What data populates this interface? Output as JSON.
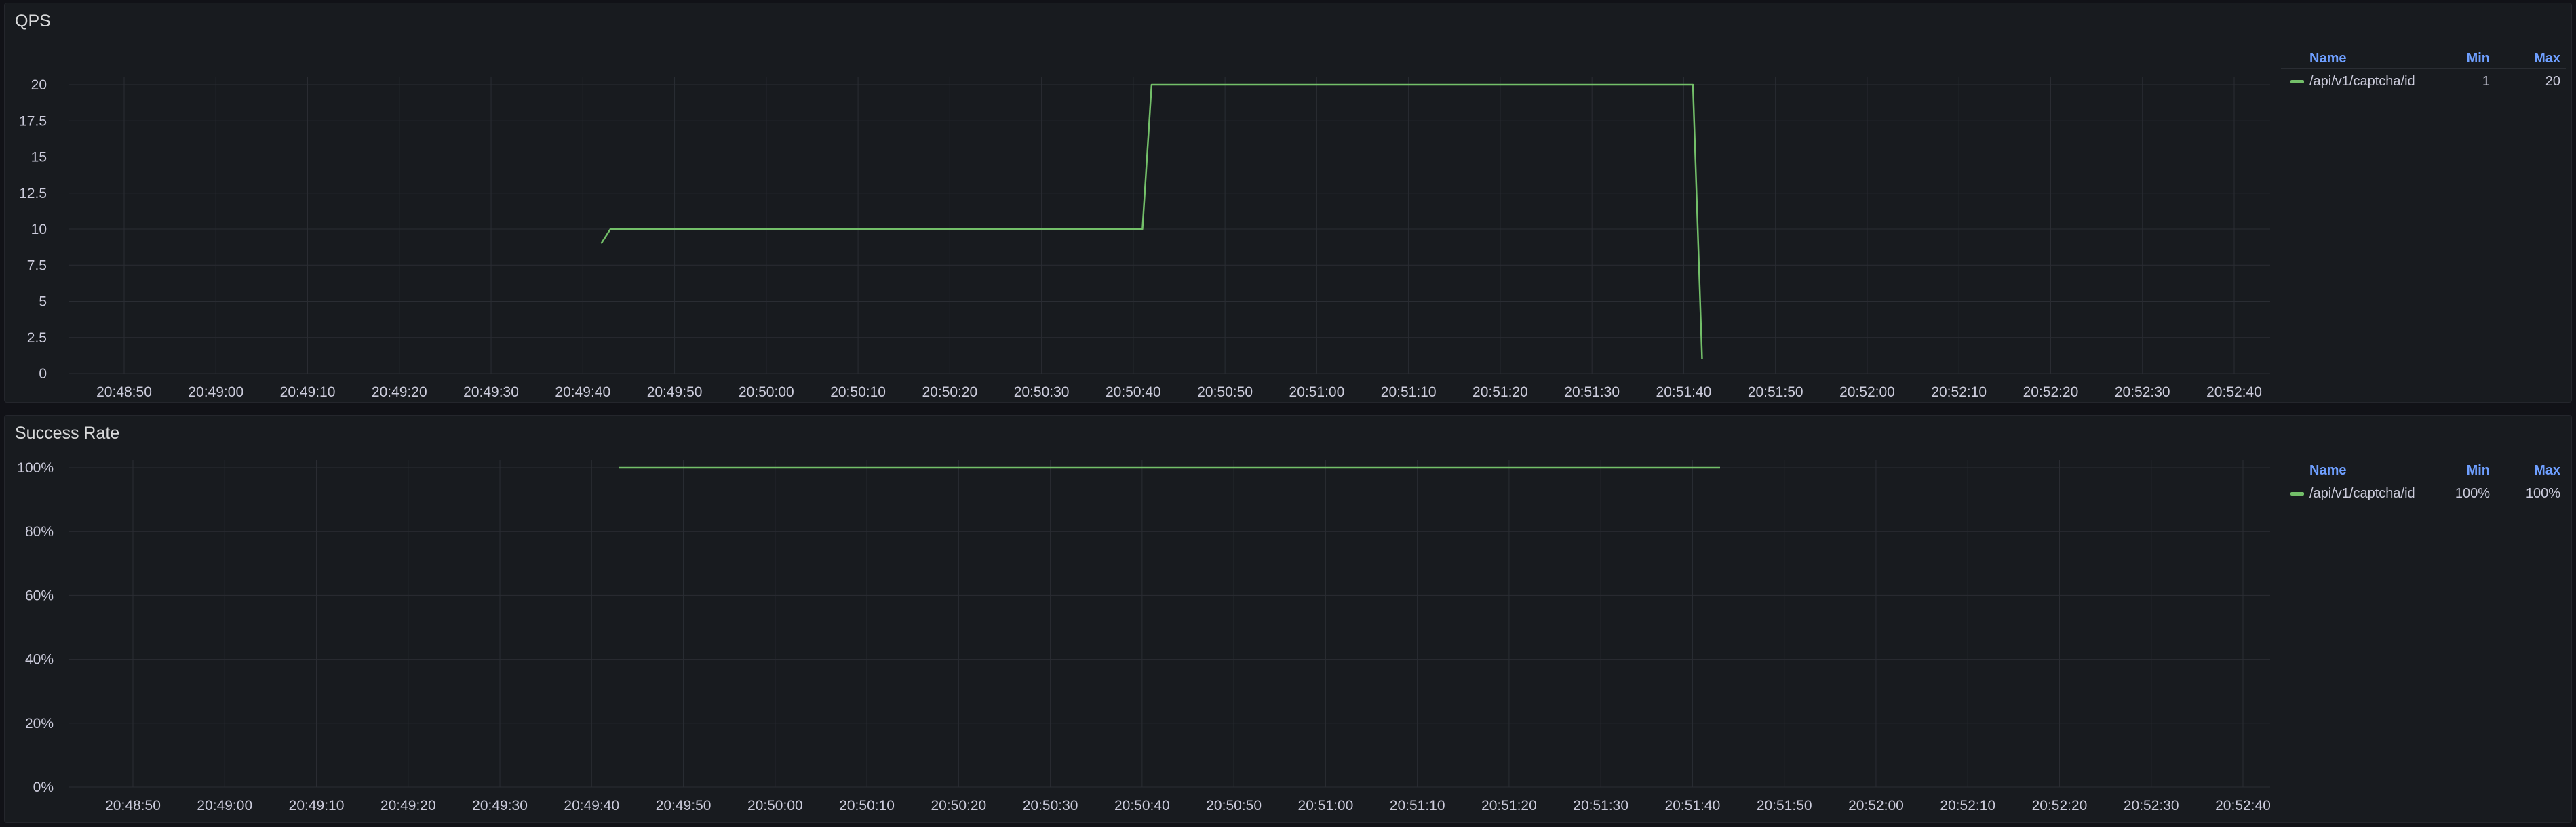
{
  "colors": {
    "series": "#73bf69",
    "grid": "#2a2d33"
  },
  "panels": [
    {
      "title": "QPS",
      "legend": {
        "headers": {
          "name": "Name",
          "min": "Min",
          "max": "Max"
        },
        "rows": [
          {
            "name": "/api/v1/captcha/id",
            "min": "1",
            "max": "20"
          }
        ]
      },
      "chart_data": {
        "type": "line",
        "x_ticks": [
          "20:48:50",
          "20:49:00",
          "20:49:10",
          "20:49:20",
          "20:49:30",
          "20:49:40",
          "20:49:50",
          "20:50:00",
          "20:50:10",
          "20:50:20",
          "20:50:30",
          "20:50:40",
          "20:50:50",
          "20:51:00",
          "20:51:10",
          "20:51:20",
          "20:51:30",
          "20:51:40",
          "20:51:50",
          "20:52:00",
          "20:52:10",
          "20:52:20",
          "20:52:30",
          "20:52:40"
        ],
        "y_ticks": [
          "0",
          "2.5",
          "5",
          "7.5",
          "10",
          "12.5",
          "15",
          "17.5",
          "20"
        ],
        "ylim": [
          0,
          20
        ],
        "grid": true,
        "series": [
          {
            "name": "/api/v1/captcha/id",
            "points": [
              {
                "t": "20:49:42",
                "v": 9
              },
              {
                "t": "20:49:43",
                "v": 10
              },
              {
                "t": "20:50:41",
                "v": 10
              },
              {
                "t": "20:50:42",
                "v": 20
              },
              {
                "t": "20:51:41",
                "v": 20
              },
              {
                "t": "20:51:42",
                "v": 1
              }
            ]
          }
        ]
      }
    },
    {
      "title": "Success Rate",
      "legend": {
        "headers": {
          "name": "Name",
          "min": "Min",
          "max": "Max"
        },
        "rows": [
          {
            "name": "/api/v1/captcha/id",
            "min": "100%",
            "max": "100%"
          }
        ]
      },
      "chart_data": {
        "type": "line",
        "x_ticks": [
          "20:48:50",
          "20:49:00",
          "20:49:10",
          "20:49:20",
          "20:49:30",
          "20:49:40",
          "20:49:50",
          "20:50:00",
          "20:50:10",
          "20:50:20",
          "20:50:30",
          "20:50:40",
          "20:50:50",
          "20:51:00",
          "20:51:10",
          "20:51:20",
          "20:51:30",
          "20:51:40",
          "20:51:50",
          "20:52:00",
          "20:52:10",
          "20:52:20",
          "20:52:30",
          "20:52:40"
        ],
        "y_ticks": [
          "0%",
          "20%",
          "40%",
          "60%",
          "80%",
          "100%"
        ],
        "ylim": [
          0,
          100
        ],
        "grid": true,
        "series": [
          {
            "name": "/api/v1/captcha/id",
            "points": [
              {
                "t": "20:49:43",
                "v": 100
              },
              {
                "t": "20:51:43",
                "v": 100
              }
            ]
          }
        ]
      }
    }
  ]
}
